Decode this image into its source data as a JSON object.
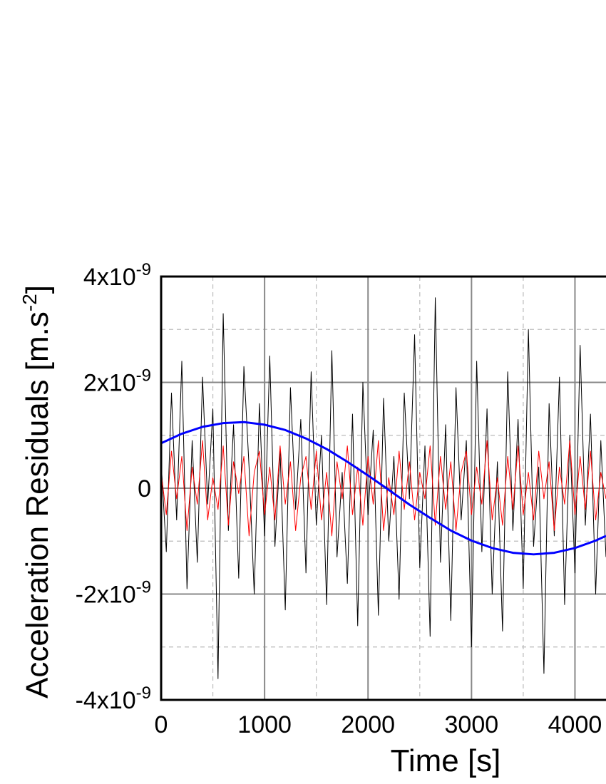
{
  "chart_data": {
    "type": "line",
    "x_label": "Time [s]",
    "y_label": {
      "text": "Acceleration Residuals [m.s",
      "sup": "-2",
      "after": "]"
    },
    "xlim": [
      0,
      4300
    ],
    "ylim": [
      -4e-09,
      4e-09
    ],
    "xticks": [
      0,
      1000,
      2000,
      3000,
      4000
    ],
    "yticks": [
      {
        "value": -4e-09,
        "label": "-4x10",
        "exponent": "-9"
      },
      {
        "value": -2e-09,
        "label": "-2x10",
        "exponent": "-9"
      },
      0,
      {
        "value": 2e-09,
        "label": "2x10",
        "exponent": "-9"
      },
      {
        "value": 4e-09,
        "label": "4x10",
        "exponent": "-9"
      }
    ],
    "xminor": [
      500,
      1500,
      2500,
      3500
    ],
    "yminor": [
      -3e-09,
      -1e-09,
      1e-09,
      3e-09
    ],
    "grid": true,
    "series": [
      {
        "color": "#000000",
        "width": 1,
        "x": [
          0,
          50,
          100,
          150,
          200,
          250,
          300,
          350,
          400,
          450,
          500,
          550,
          600,
          650,
          700,
          750,
          800,
          850,
          900,
          950,
          1000,
          1050,
          1100,
          1150,
          1200,
          1250,
          1300,
          1350,
          1400,
          1450,
          1500,
          1550,
          1600,
          1650,
          1700,
          1750,
          1800,
          1850,
          1900,
          1950,
          2000,
          2050,
          2100,
          2150,
          2200,
          2250,
          2300,
          2350,
          2400,
          2450,
          2500,
          2550,
          2600,
          2650,
          2700,
          2750,
          2800,
          2850,
          2900,
          2950,
          3000,
          3050,
          3100,
          3150,
          3200,
          3250,
          3300,
          3350,
          3400,
          3450,
          3500,
          3550,
          3600,
          3650,
          3700,
          3750,
          3800,
          3850,
          3900,
          3950,
          4000,
          4050,
          4100,
          4150,
          4200,
          4250,
          4300
        ],
        "values": [
          5e-10,
          -1.2e-09,
          1.8e-09,
          -6e-10,
          2.4e-09,
          -1.9e-09,
          9e-10,
          -1.4e-09,
          2.1e-09,
          -3e-10,
          1.5e-09,
          -3.6e-09,
          3.3e-09,
          -8e-10,
          1.2e-09,
          -1.7e-09,
          2.3e-09,
          4e-10,
          -2e-09,
          1.6e-09,
          -9e-10,
          2.5e-09,
          -1.1e-09,
          7e-10,
          -2.3e-09,
          1.9e-09,
          -4e-10,
          1.3e-09,
          -1.6e-09,
          2.2e-09,
          -7e-10,
          1e-09,
          -2.2e-09,
          2.6e-09,
          -1.3e-09,
          3e-10,
          -1.8e-09,
          1.4e-09,
          -2.6e-09,
          2e-09,
          -5e-10,
          1.1e-09,
          -2.4e-09,
          1.7e-09,
          -1e-09,
          6e-10,
          -2.1e-09,
          1.8e-09,
          -2e-10,
          2.9e-09,
          -1.5e-09,
          8e-10,
          -2.8e-09,
          3.6e-09,
          -1.4e-09,
          1.2e-09,
          -2.5e-09,
          1.9e-09,
          -6e-10,
          9e-10,
          -3e-09,
          2.4e-09,
          -1.2e-09,
          1.5e-09,
          -2e-09,
          5e-10,
          -2.7e-09,
          2.2e-09,
          -8e-10,
          1.3e-09,
          -1.9e-09,
          3e-09,
          -1.1e-09,
          4e-10,
          -3.5e-09,
          1.6e-09,
          -9e-10,
          2.1e-09,
          -2.2e-09,
          1e-09,
          -1.6e-09,
          2.7e-09,
          -7e-10,
          1.4e-09,
          -2e-09,
          9e-10,
          -1.3e-09
        ]
      },
      {
        "color": "#ff0000",
        "width": 1,
        "x": [
          0,
          50,
          100,
          150,
          200,
          250,
          300,
          350,
          400,
          450,
          500,
          550,
          600,
          650,
          700,
          750,
          800,
          850,
          900,
          950,
          1000,
          1050,
          1100,
          1150,
          1200,
          1250,
          1300,
          1350,
          1400,
          1450,
          1500,
          1550,
          1600,
          1650,
          1700,
          1750,
          1800,
          1850,
          1900,
          1950,
          2000,
          2050,
          2100,
          2150,
          2200,
          2250,
          2300,
          2350,
          2400,
          2450,
          2500,
          2550,
          2600,
          2650,
          2700,
          2750,
          2800,
          2850,
          2900,
          2950,
          3000,
          3050,
          3100,
          3150,
          3200,
          3250,
          3300,
          3350,
          3400,
          3450,
          3500,
          3550,
          3600,
          3650,
          3700,
          3750,
          3800,
          3850,
          3900,
          3950,
          4000,
          4050,
          4100,
          4150,
          4200,
          4250,
          4300
        ],
        "values": [
          3e-10,
          -5e-10,
          7e-10,
          -2e-10,
          6e-10,
          -8e-10,
          4e-10,
          -3e-10,
          9e-10,
          -6e-10,
          2e-10,
          -4e-10,
          8e-10,
          -7e-10,
          5e-10,
          -1e-10,
          6e-10,
          -9e-10,
          3e-10,
          7e-10,
          -5e-10,
          4e-10,
          -6e-10,
          8e-10,
          -3e-10,
          5e-10,
          -8e-10,
          2e-10,
          6e-10,
          -4e-10,
          7e-10,
          -6e-10,
          3e-10,
          -9e-10,
          5e-10,
          -2e-10,
          8e-10,
          -5e-10,
          4e-10,
          -7e-10,
          6e-10,
          -3e-10,
          9e-10,
          -8e-10,
          2e-10,
          -5e-10,
          7e-10,
          -4e-10,
          5e-10,
          -6e-10,
          3e-10,
          -2e-10,
          8e-10,
          -7e-10,
          6e-10,
          -4e-10,
          5e-10,
          -8e-10,
          3e-10,
          7e-10,
          -5e-10,
          4e-10,
          -3e-10,
          9e-10,
          -6e-10,
          2e-10,
          -7e-10,
          6e-10,
          -4e-10,
          8e-10,
          -5e-10,
          3e-10,
          -6e-10,
          7e-10,
          -2e-10,
          5e-10,
          -8e-10,
          4e-10,
          -3e-10,
          9e-10,
          -5e-10,
          6e-10,
          -4e-10,
          7e-10,
          -6e-10,
          3e-10,
          -2e-10
        ]
      },
      {
        "color": "#0000ff",
        "width": 3,
        "x": [
          0,
          200,
          400,
          600,
          800,
          1000,
          1200,
          1400,
          1600,
          1800,
          2000,
          2200,
          2400,
          2600,
          2800,
          3000,
          3200,
          3400,
          3600,
          3800,
          4000,
          4200,
          4300
        ],
        "values": [
          8.5e-10,
          1.03e-09,
          1.16e-09,
          1.23e-09,
          1.25e-09,
          1.2e-09,
          1.1e-09,
          9.4e-10,
          7.4e-10,
          5e-10,
          2.4e-10,
          -3e-11,
          -3.1e-10,
          -5.6e-10,
          -8e-10,
          -9.9e-10,
          -1.13e-09,
          -1.22e-09,
          -1.25e-09,
          -1.22e-09,
          -1.13e-09,
          -9.9e-10,
          -9e-10
        ]
      }
    ]
  }
}
